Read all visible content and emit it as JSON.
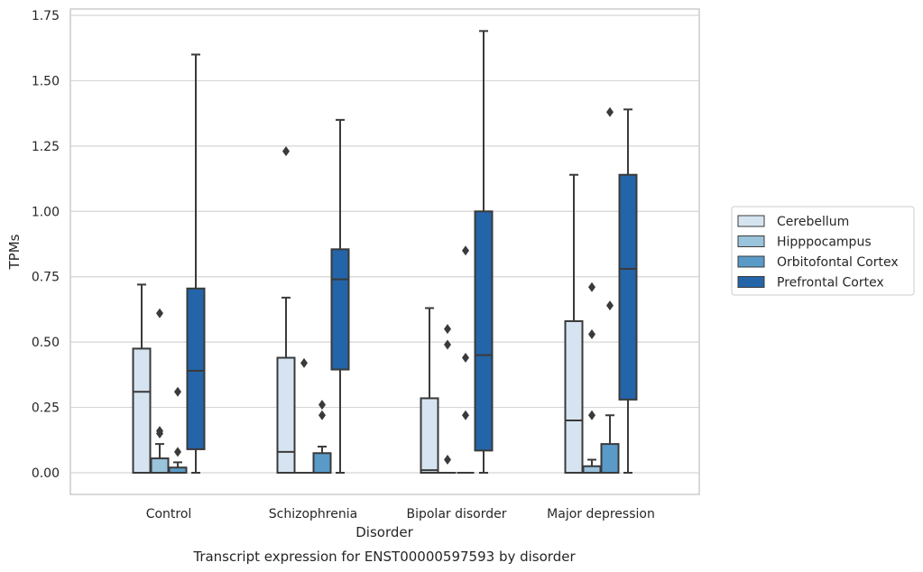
{
  "chart_data": {
    "type": "box",
    "title": "",
    "caption": "Transcript expression for ENST00000597593 by disorder",
    "xlabel": "Disorder",
    "ylabel": "TPMs",
    "ylim": [
      -0.08,
      1.77
    ],
    "yticks": [
      "0.00",
      "0.25",
      "0.50",
      "0.75",
      "1.00",
      "1.25",
      "1.50",
      "1.75"
    ],
    "ytick_values": [
      0,
      0.25,
      0.5,
      0.75,
      1.0,
      1.25,
      1.5,
      1.75
    ],
    "grid": true,
    "legend_position": "right",
    "categories": [
      "Control",
      "Schizophrenia",
      "Bipolar disorder",
      "Major depression"
    ],
    "series": [
      {
        "name": "Cerebellum",
        "color": "#d6e4f1",
        "boxes": [
          {
            "whislo": 0.0,
            "q1": 0.0,
            "med": 0.31,
            "q3": 0.475,
            "whishi": 0.72,
            "fliers": []
          },
          {
            "whislo": 0.0,
            "q1": 0.0,
            "med": 0.08,
            "q3": 0.44,
            "whishi": 0.67,
            "fliers": [
              1.23
            ]
          },
          {
            "whislo": 0.0,
            "q1": 0.0,
            "med": 0.01,
            "q3": 0.285,
            "whishi": 0.63,
            "fliers": []
          },
          {
            "whislo": 0.0,
            "q1": 0.0,
            "med": 0.2,
            "q3": 0.58,
            "whishi": 1.14,
            "fliers": []
          }
        ]
      },
      {
        "name": "Hipppocampus",
        "color": "#9ac3dc",
        "boxes": [
          {
            "whislo": 0.0,
            "q1": 0.0,
            "med": 0.0,
            "q3": 0.055,
            "whishi": 0.11,
            "fliers": [
              0.15,
              0.16,
              0.61
            ]
          },
          {
            "whislo": 0.0,
            "q1": 0.0,
            "med": 0.0,
            "q3": 0.0,
            "whishi": 0.0,
            "fliers": [
              0.42
            ]
          },
          {
            "whislo": 0.0,
            "q1": 0.0,
            "med": 0.0,
            "q3": 0.0,
            "whishi": 0.0,
            "fliers": [
              0.05,
              0.49,
              0.55
            ]
          },
          {
            "whislo": 0.0,
            "q1": 0.0,
            "med": 0.0,
            "q3": 0.025,
            "whishi": 0.05,
            "fliers": [
              0.22,
              0.53,
              0.71
            ]
          }
        ]
      },
      {
        "name": "Orbitofontal Cortex",
        "color": "#5a9ac8",
        "boxes": [
          {
            "whislo": 0.0,
            "q1": 0.0,
            "med": 0.0,
            "q3": 0.02,
            "whishi": 0.04,
            "fliers": [
              0.08,
              0.31
            ]
          },
          {
            "whislo": 0.0,
            "q1": 0.0,
            "med": 0.0,
            "q3": 0.075,
            "whishi": 0.1,
            "fliers": [
              0.22,
              0.26
            ]
          },
          {
            "whislo": 0.0,
            "q1": 0.0,
            "med": 0.0,
            "q3": 0.0,
            "whishi": 0.0,
            "fliers": [
              0.22,
              0.44,
              0.85
            ]
          },
          {
            "whislo": 0.0,
            "q1": 0.0,
            "med": 0.0,
            "q3": 0.11,
            "whishi": 0.22,
            "fliers": [
              0.64,
              1.38
            ]
          }
        ]
      },
      {
        "name": "Prefrontal Cortex",
        "color": "#2464a8",
        "boxes": [
          {
            "whislo": 0.0,
            "q1": 0.09,
            "med": 0.39,
            "q3": 0.705,
            "whishi": 1.6,
            "fliers": []
          },
          {
            "whislo": 0.0,
            "q1": 0.395,
            "med": 0.74,
            "q3": 0.855,
            "whishi": 1.35,
            "fliers": []
          },
          {
            "whislo": 0.0,
            "q1": 0.085,
            "med": 0.45,
            "q3": 1.0,
            "whishi": 1.69,
            "fliers": []
          },
          {
            "whislo": 0.0,
            "q1": 0.28,
            "med": 0.78,
            "q3": 1.14,
            "whishi": 1.39,
            "fliers": []
          }
        ]
      }
    ]
  }
}
